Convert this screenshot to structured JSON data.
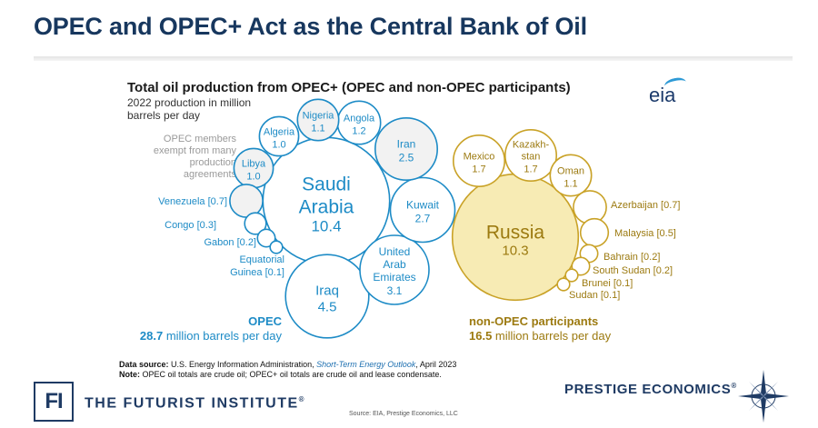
{
  "slide": {
    "title": "OPEC and OPEC+ Act as the Central Bank of Oil"
  },
  "chart_data": {
    "type": "bubble",
    "title": "Total oil production from OPEC+ (OPEC and non-OPEC participants)",
    "subtitle": "2022 production in million barrels per day",
    "exempt_note": "OPEC members exempt from many production agreements",
    "units": "million barrels per day",
    "groups": [
      {
        "name": "OPEC",
        "total": 28.7,
        "total_label": "28.7",
        "total_suffix": " million barrels per day",
        "color": "#1d8bc6",
        "members": [
          {
            "name": "Saudi Arabia",
            "value": 10.4,
            "exempt": false
          },
          {
            "name": "Iraq",
            "value": 4.5,
            "exempt": false
          },
          {
            "name": "United Arab Emirates",
            "value": 3.1,
            "exempt": false
          },
          {
            "name": "Kuwait",
            "value": 2.7,
            "exempt": false
          },
          {
            "name": "Iran",
            "value": 2.5,
            "exempt": true
          },
          {
            "name": "Angola",
            "value": 1.2,
            "exempt": false
          },
          {
            "name": "Nigeria",
            "value": 1.1,
            "exempt": true
          },
          {
            "name": "Algeria",
            "value": 1.0,
            "exempt": false
          },
          {
            "name": "Libya",
            "value": 1.0,
            "exempt": true
          },
          {
            "name": "Venezuela",
            "value": 0.7,
            "exempt": true
          },
          {
            "name": "Congo",
            "value": 0.3,
            "exempt": false
          },
          {
            "name": "Gabon",
            "value": 0.2,
            "exempt": false
          },
          {
            "name": "Equatorial Guinea",
            "value": 0.1,
            "exempt": false
          }
        ]
      },
      {
        "name": "non-OPEC participants",
        "total": 16.5,
        "total_label": "16.5",
        "total_suffix": " million barrels per day",
        "color": "#c9a227",
        "members": [
          {
            "name": "Russia",
            "value": 10.3
          },
          {
            "name": "Mexico",
            "value": 1.7
          },
          {
            "name": "Kazakhstan",
            "value": 1.7
          },
          {
            "name": "Oman",
            "value": 1.1
          },
          {
            "name": "Azerbaijan",
            "value": 0.7
          },
          {
            "name": "Malaysia",
            "value": 0.5
          },
          {
            "name": "Bahrain",
            "value": 0.2
          },
          {
            "name": "South Sudan",
            "value": 0.2
          },
          {
            "name": "Brunei",
            "value": 0.1
          },
          {
            "name": "Sudan",
            "value": 0.1
          }
        ]
      }
    ],
    "source_label": "Data source:",
    "source_text": " U.S. Energy Information Administration, ",
    "source_title": "Short-Term Energy Outlook",
    "source_date": ", April 2023",
    "note_label": "Note:",
    "note_text": " OPEC oil totals are crude oil; OPEC+ oil totals are crude oil and lease condensate."
  },
  "logos": {
    "eia": "eia",
    "fi_mark": "FI",
    "fi_name": "THE FUTURIST INSTITUTE",
    "fi_mark_symbol": "®",
    "prestige": "PRESTIGE ECONOMICS",
    "prestige_symbol": "®"
  },
  "footer": {
    "source": "Source: EIA, Prestige Economics, LLC"
  }
}
